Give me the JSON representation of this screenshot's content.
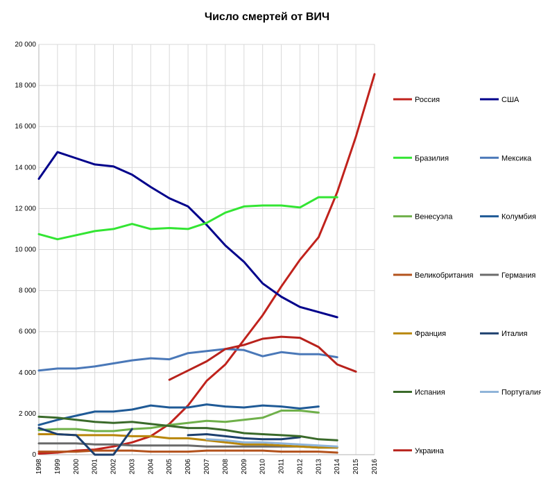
{
  "chart_data": {
    "type": "line",
    "title": "Число смертей от ВИЧ",
    "xlabel": "",
    "ylabel": "",
    "x": [
      1998,
      1999,
      2000,
      2001,
      2002,
      2003,
      2004,
      2005,
      2006,
      2007,
      2008,
      2009,
      2010,
      2011,
      2012,
      2013,
      2014,
      2015,
      2016
    ],
    "ylim": [
      0,
      20000
    ],
    "yticks": [
      0,
      2000,
      4000,
      6000,
      8000,
      10000,
      12000,
      14000,
      16000,
      18000,
      20000
    ],
    "ytick_labels": [
      "0",
      "2 000",
      "4 000",
      "6 000",
      "8 000",
      "10 000",
      "12 000",
      "14 000",
      "16 000",
      "18 000",
      "20 000"
    ],
    "grid": true,
    "legend_position": "right",
    "series": [
      {
        "name": "Россия",
        "color": "#c0221c",
        "values": [
          50,
          100,
          200,
          250,
          400,
          600,
          900,
          1500,
          2400,
          3600,
          4400,
          5600,
          6800,
          8200,
          9500,
          10600,
          12800,
          15500,
          18550
        ]
      },
      {
        "name": "США",
        "color": "#00008b",
        "values": [
          13450,
          14750,
          14450,
          14150,
          14050,
          13650,
          13050,
          12500,
          12100,
          11200,
          10200,
          9400,
          8350,
          7700,
          7200,
          6950,
          6700,
          null,
          null
        ]
      },
      {
        "name": "Бразилия",
        "color": "#33e533",
        "values": [
          10750,
          10500,
          10700,
          10900,
          11000,
          11250,
          11000,
          11050,
          11000,
          11300,
          11800,
          12100,
          12150,
          12150,
          12050,
          12550,
          12550,
          null,
          null
        ]
      },
      {
        "name": "Мексика",
        "color": "#4a78b8",
        "values": [
          4100,
          4200,
          4200,
          4300,
          4450,
          4600,
          4700,
          4650,
          4950,
          5050,
          5150,
          5100,
          4800,
          5000,
          4900,
          4900,
          4750,
          null,
          null
        ]
      },
      {
        "name": "Венесуэла",
        "color": "#6fb04a",
        "values": [
          1200,
          1250,
          1250,
          1150,
          1150,
          1250,
          1300,
          1450,
          1550,
          1650,
          1600,
          1700,
          1800,
          2150,
          2150,
          2050,
          null,
          null,
          null
        ]
      },
      {
        "name": "Колумбия",
        "color": "#1f5a96",
        "values": [
          1450,
          1700,
          1900,
          2100,
          2100,
          2200,
          2400,
          2300,
          2300,
          2450,
          2350,
          2300,
          2400,
          2350,
          2250,
          2350,
          null,
          null,
          null
        ]
      },
      {
        "name": "Великобритания",
        "color": "#b3521c",
        "values": [
          150,
          150,
          150,
          200,
          200,
          200,
          150,
          150,
          150,
          200,
          200,
          200,
          200,
          150,
          150,
          150,
          100,
          null,
          null
        ]
      },
      {
        "name": "Германия",
        "color": "#6a6a6a",
        "values": [
          550,
          550,
          550,
          500,
          500,
          450,
          450,
          450,
          450,
          400,
          400,
          400,
          400,
          400,
          400,
          350,
          350,
          null,
          null
        ]
      },
      {
        "name": "Франция",
        "color": "#b8860b",
        "values": [
          1000,
          1000,
          950,
          950,
          950,
          900,
          900,
          800,
          800,
          700,
          600,
          500,
          500,
          450,
          400,
          350,
          350,
          null,
          null
        ]
      },
      {
        "name": "Италия",
        "color": "#1c3f6e",
        "values": [
          1300,
          1000,
          950,
          0,
          0,
          1250,
          null,
          null,
          950,
          1000,
          900,
          800,
          750,
          750,
          850,
          null,
          null,
          null,
          null
        ]
      },
      {
        "name": "Испания",
        "color": "#3a6a2a",
        "values": [
          1850,
          1800,
          1700,
          1600,
          1550,
          1600,
          1500,
          1400,
          1300,
          1300,
          1200,
          1050,
          1000,
          950,
          900,
          750,
          700,
          null,
          null
        ]
      },
      {
        "name": "Португалия",
        "color": "#8fb4d9",
        "values": [
          null,
          null,
          null,
          null,
          null,
          null,
          null,
          null,
          null,
          750,
          700,
          600,
          600,
          550,
          500,
          450,
          400,
          null,
          null
        ]
      },
      {
        "name": "Украина",
        "color": "#b8221c",
        "values": [
          null,
          null,
          null,
          null,
          null,
          null,
          null,
          3650,
          4100,
          4550,
          5150,
          5350,
          5650,
          5750,
          5700,
          5250,
          4400,
          4050,
          null
        ]
      }
    ]
  }
}
